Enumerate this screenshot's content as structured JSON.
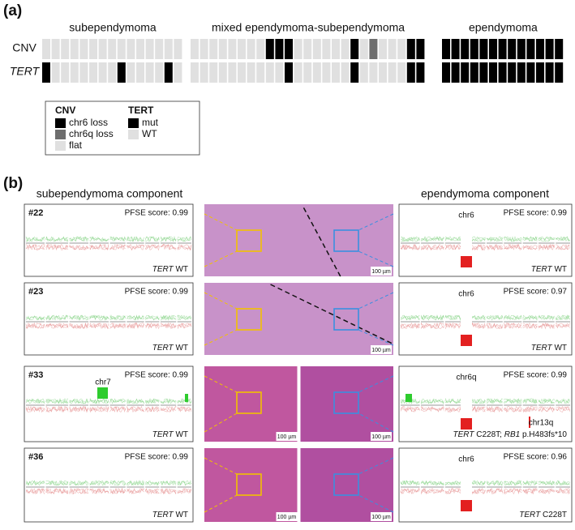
{
  "panel_a": {
    "label": "(a)",
    "row_labels": {
      "cnv": "CNV",
      "tert": "TERT"
    },
    "groups": [
      {
        "title": "subependymoma",
        "cnv": [
          "flat",
          "flat",
          "flat",
          "flat",
          "flat",
          "flat",
          "flat",
          "flat",
          "flat",
          "flat",
          "flat",
          "flat",
          "flat",
          "flat",
          "flat"
        ],
        "tert": [
          "mut",
          "WT",
          "WT",
          "WT",
          "WT",
          "WT",
          "WT",
          "WT",
          "mut",
          "WT",
          "WT",
          "WT",
          "WT",
          "mut",
          "WT"
        ]
      },
      {
        "title": "mixed ependymoma-subependymoma",
        "cnv": [
          "flat",
          "flat",
          "flat",
          "flat",
          "flat",
          "flat",
          "flat",
          "flat",
          "chr6 loss",
          "chr6 loss",
          "chr6 loss",
          "flat",
          "flat",
          "flat",
          "flat",
          "flat",
          "flat",
          "chr6 loss",
          "flat",
          "chr6q loss",
          "flat",
          "flat",
          "flat",
          "chr6 loss",
          "chr6 loss"
        ],
        "tert": [
          "WT",
          "WT",
          "WT",
          "WT",
          "WT",
          "WT",
          "WT",
          "WT",
          "WT",
          "WT",
          "mut",
          "WT",
          "WT",
          "WT",
          "WT",
          "WT",
          "WT",
          "mut",
          "WT",
          "WT",
          "WT",
          "WT",
          "WT",
          "mut",
          "mut"
        ]
      },
      {
        "title": "ependymoma",
        "cnv": [
          "chr6 loss",
          "chr6 loss",
          "chr6 loss",
          "chr6 loss",
          "chr6 loss",
          "chr6 loss",
          "chr6 loss",
          "chr6 loss",
          "chr6 loss",
          "chr6 loss",
          "chr6 loss",
          "chr6 loss",
          "chr6 loss"
        ],
        "tert": [
          "mut",
          "mut",
          "mut",
          "mut",
          "mut",
          "mut",
          "mut",
          "mut",
          "mut",
          "mut",
          "mut",
          "mut",
          "mut"
        ]
      }
    ],
    "legend": {
      "cnv": {
        "title": "CNV",
        "items": [
          {
            "label": "chr6 loss",
            "color": "#000000"
          },
          {
            "label": "chr6q loss",
            "color": "#6e6e6e"
          },
          {
            "label": "flat",
            "color": "#e0e0e0"
          }
        ]
      },
      "tert": {
        "title": "TERT",
        "items": [
          {
            "label": "mut",
            "color": "#000000"
          },
          {
            "label": "WT",
            "color": "#e0e0e0"
          }
        ]
      }
    }
  },
  "panel_b": {
    "label": "(b)",
    "left_title": "subependymoma component",
    "right_title": "ependymoma component",
    "scale_bar": "100 µm",
    "rows": [
      {
        "id": "#22",
        "left": {
          "score": "PFSE score: 0.99",
          "annotations": [],
          "genotype": [
            {
              "text": "TERT",
              "italic": true
            },
            {
              "text": " WT"
            }
          ]
        },
        "right": {
          "score": "PFSE score: 0.99",
          "annotations": [
            "chr6"
          ],
          "genotype": [
            {
              "text": "TERT",
              "italic": true
            },
            {
              "text": " WT"
            }
          ]
        }
      },
      {
        "id": "#23",
        "left": {
          "score": "PFSE score: 0.99",
          "annotations": [],
          "genotype": [
            {
              "text": "TERT",
              "italic": true
            },
            {
              "text": " WT"
            }
          ]
        },
        "right": {
          "score": "PFSE score: 0.97",
          "annotations": [
            "chr6"
          ],
          "genotype": [
            {
              "text": "TERT",
              "italic": true
            },
            {
              "text": " WT"
            }
          ]
        }
      },
      {
        "id": "#33",
        "left": {
          "score": "PFSE score: 0.99",
          "annotations": [
            "chr7"
          ],
          "genotype": [
            {
              "text": "TERT",
              "italic": true
            },
            {
              "text": " WT"
            }
          ]
        },
        "right": {
          "score": "PFSE score: 0.99",
          "annotations": [
            "chr6q",
            "chr13q"
          ],
          "genotype": [
            {
              "text": "TERT",
              "italic": true
            },
            {
              "text": " C228T; "
            },
            {
              "text": "RB1",
              "italic": true
            },
            {
              "text": " p.H483fs*10"
            }
          ]
        }
      },
      {
        "id": "#36",
        "left": {
          "score": "PFSE score: 0.99",
          "annotations": [],
          "genotype": [
            {
              "text": "TERT",
              "italic": true
            },
            {
              "text": " WT"
            }
          ]
        },
        "right": {
          "score": "PFSE score: 0.96",
          "annotations": [
            "chr6"
          ],
          "genotype": [
            {
              "text": "TERT",
              "italic": true
            },
            {
              "text": " C228T"
            }
          ]
        }
      }
    ]
  }
}
